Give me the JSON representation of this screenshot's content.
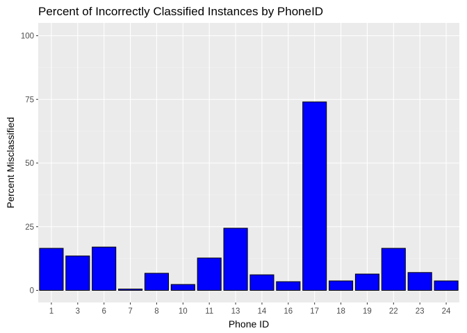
{
  "chart_data": {
    "type": "bar",
    "title": "Percent of Incorrectly Classified Instances by PhoneID",
    "xlabel": "Phone ID",
    "ylabel": "Percent Misclassified",
    "categories": [
      "1",
      "3",
      "6",
      "7",
      "8",
      "10",
      "11",
      "13",
      "14",
      "16",
      "17",
      "18",
      "19",
      "22",
      "23",
      "24"
    ],
    "values": [
      16.5,
      13.5,
      17.0,
      0.5,
      6.7,
      2.3,
      12.7,
      24.4,
      6.1,
      3.4,
      74.0,
      3.7,
      6.4,
      16.5,
      7.0,
      3.7
    ],
    "ylim": [
      0,
      100
    ],
    "yticks": [
      0,
      25,
      50,
      75,
      100
    ],
    "grid": true,
    "legend": "none",
    "colors": {
      "bar_fill": "#0000ff",
      "bar_stroke": "#000000",
      "panel_background": "#ebebeb",
      "grid_major": "#ffffff",
      "grid_minor": "#f5f5f5"
    }
  }
}
